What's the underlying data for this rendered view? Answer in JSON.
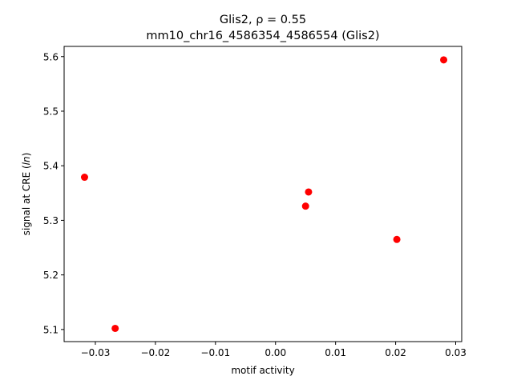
{
  "chart_data": {
    "type": "scatter",
    "title": "Glis2, ρ = 0.55",
    "subtitle": "mm10_chr16_4586354_4586554 (Glis2)",
    "xlabel": "motif activity",
    "ylabel_prefix": "signal at CRE (",
    "ylabel_italic": "ln",
    "ylabel_suffix": ")",
    "xlim": [
      -0.0352,
      0.031
    ],
    "ylim": [
      5.0778,
      5.6187
    ],
    "xticks": [
      {
        "value": -0.03,
        "label": "−0.03"
      },
      {
        "value": -0.02,
        "label": "−0.02"
      },
      {
        "value": -0.01,
        "label": "−0.01"
      },
      {
        "value": 0.0,
        "label": "0.00"
      },
      {
        "value": 0.01,
        "label": "0.01"
      },
      {
        "value": 0.02,
        "label": "0.02"
      },
      {
        "value": 0.03,
        "label": "0.03"
      }
    ],
    "yticks": [
      {
        "value": 5.1,
        "label": "5.1"
      },
      {
        "value": 5.2,
        "label": "5.2"
      },
      {
        "value": 5.3,
        "label": "5.3"
      },
      {
        "value": 5.4,
        "label": "5.4"
      },
      {
        "value": 5.5,
        "label": "5.5"
      },
      {
        "value": 5.6,
        "label": "5.6"
      }
    ],
    "grid": false,
    "marker_color": "#ff0000",
    "points": [
      {
        "x": -0.0318,
        "y": 5.379
      },
      {
        "x": -0.0267,
        "y": 5.102
      },
      {
        "x": 0.005,
        "y": 5.326
      },
      {
        "x": 0.0055,
        "y": 5.352
      },
      {
        "x": 0.0202,
        "y": 5.265
      },
      {
        "x": 0.028,
        "y": 5.594
      }
    ]
  }
}
